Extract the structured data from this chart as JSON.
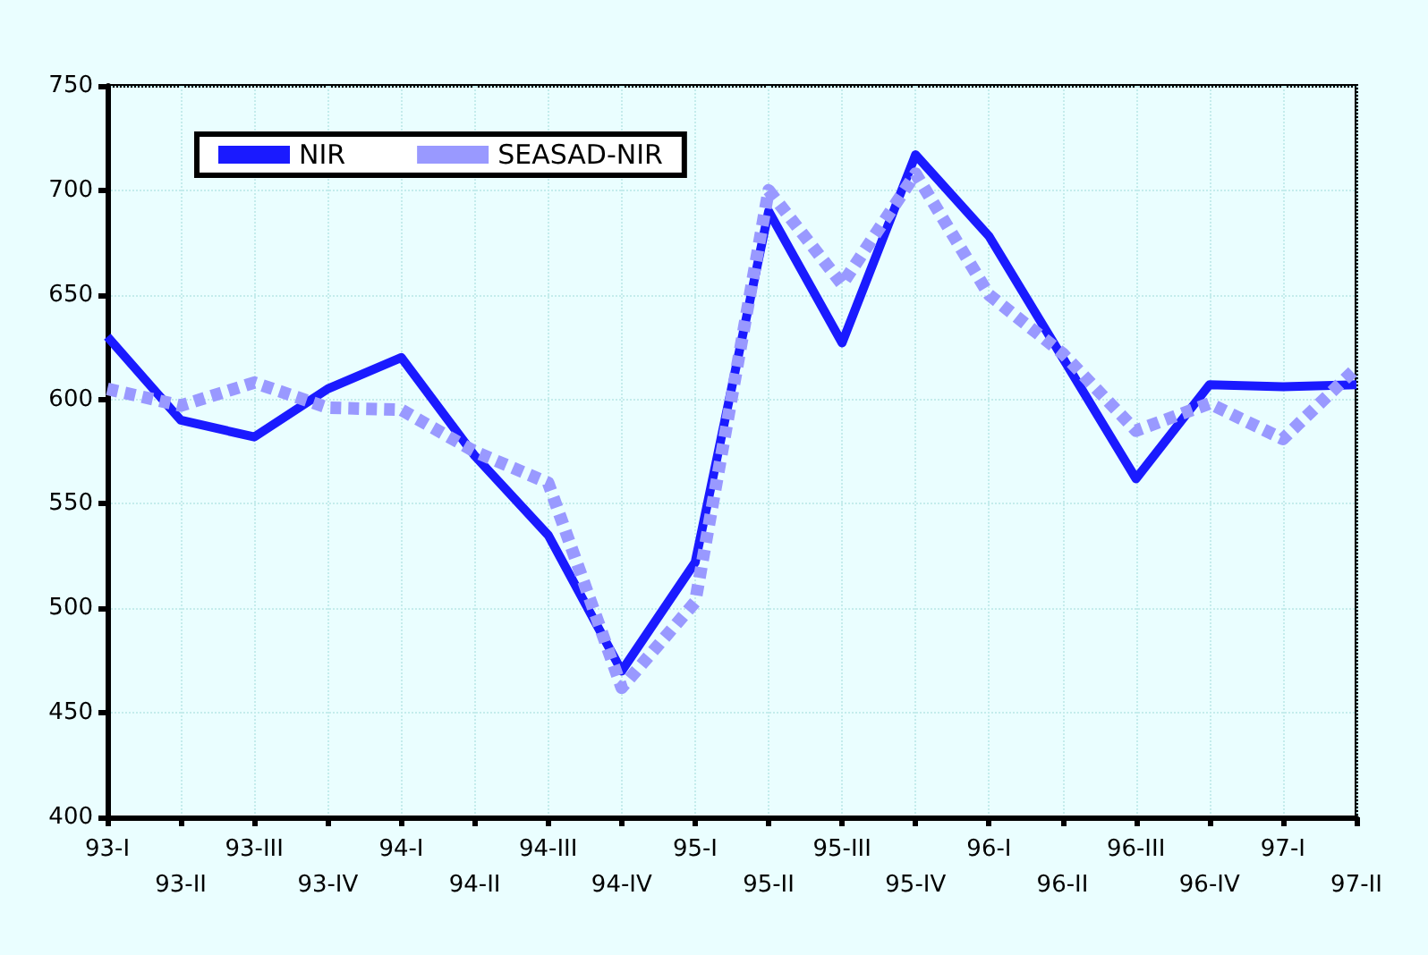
{
  "chart_data": {
    "type": "line",
    "categories": [
      "93-I",
      "93-II",
      "93-III",
      "93-IV",
      "94-I",
      "94-II",
      "94-III",
      "94-IV",
      "95-I",
      "95-II",
      "95-III",
      "95-IV",
      "96-I",
      "96-II",
      "96-III",
      "96-IV",
      "97-I",
      "97-II"
    ],
    "series": [
      {
        "name": "NIR",
        "color": "#1a1aff",
        "line_style": "solid",
        "values": [
          630,
          590,
          582,
          605,
          620,
          573,
          535,
          470,
          522,
          690,
          627,
          717,
          678,
          620,
          562,
          607,
          606,
          607
        ]
      },
      {
        "name": "SEASAD-NIR",
        "color": "#9999ff",
        "line_style": "dashed",
        "values": [
          605,
          597,
          608,
          596,
          595,
          575,
          560,
          462,
          503,
          700,
          655,
          708,
          650,
          622,
          585,
          598,
          581,
          615
        ]
      }
    ],
    "ylim": [
      400,
      750
    ],
    "yticks": [
      400,
      450,
      500,
      550,
      600,
      650,
      700,
      750
    ],
    "grid": true,
    "legend": "top left",
    "marker": "none"
  }
}
